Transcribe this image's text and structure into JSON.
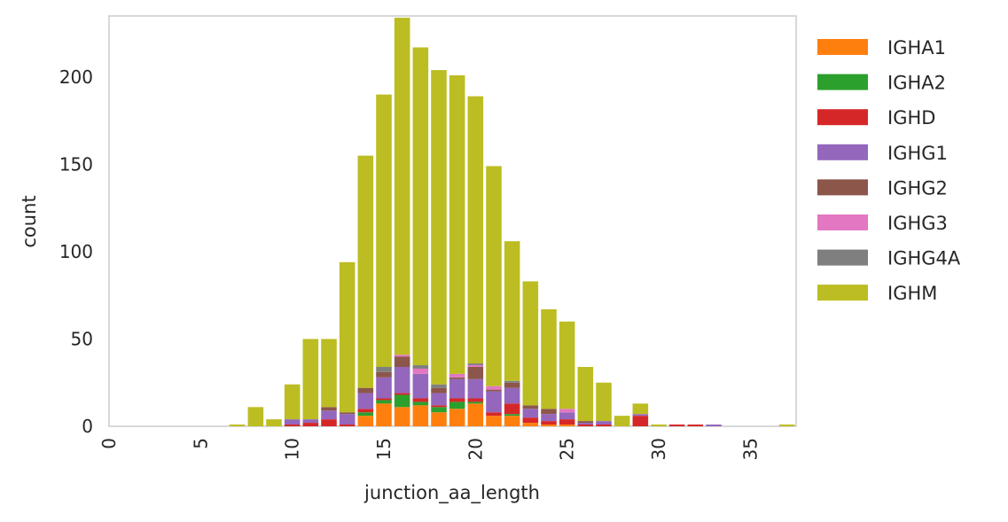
{
  "chart_data": {
    "type": "bar",
    "stacked": true,
    "title": "",
    "xlabel": "junction_aa_length",
    "ylabel": "count",
    "xlim": [
      0,
      37.5
    ],
    "ylim": [
      0,
      235
    ],
    "x_ticks": [
      0,
      5,
      10,
      15,
      20,
      25,
      30,
      35
    ],
    "y_ticks": [
      0,
      50,
      100,
      150,
      200
    ],
    "x_tick_labels": [
      "0",
      "5",
      "10",
      "15",
      "20",
      "25",
      "30",
      "35"
    ],
    "y_tick_labels": [
      "0",
      "50",
      "100",
      "150",
      "200"
    ],
    "grid": false,
    "legend_position": "right, outside plot",
    "x": [
      7,
      8,
      9,
      10,
      11,
      12,
      13,
      14,
      15,
      16,
      17,
      18,
      19,
      20,
      21,
      22,
      23,
      24,
      25,
      26,
      27,
      28,
      29,
      30,
      31,
      32,
      33,
      34,
      35,
      36,
      37
    ],
    "totals": [
      1,
      11,
      4,
      24,
      50,
      50,
      94,
      155,
      190,
      234,
      217,
      204,
      201,
      189,
      149,
      106,
      83,
      67,
      60,
      34,
      25,
      6,
      13,
      1,
      1,
      1,
      1,
      0,
      0,
      0,
      1
    ],
    "series": [
      {
        "name": "IGHA1",
        "color": "#ff7f0e",
        "values": [
          0,
          0,
          0,
          0,
          0,
          0,
          0,
          6,
          13,
          11,
          12,
          8,
          10,
          13,
          6,
          6,
          2,
          1,
          1,
          0,
          0,
          0,
          0,
          0,
          0,
          0,
          0,
          0,
          0,
          0,
          0
        ]
      },
      {
        "name": "IGHA2",
        "color": "#2ca02c",
        "values": [
          0,
          0,
          0,
          0,
          0,
          0,
          0,
          2,
          2,
          7,
          2,
          3,
          4,
          1,
          0,
          1,
          0,
          0,
          0,
          0,
          0,
          0,
          0,
          0,
          0,
          0,
          0,
          0,
          0,
          0,
          0
        ]
      },
      {
        "name": "IGHD",
        "color": "#d62728",
        "values": [
          0,
          0,
          0,
          1,
          2,
          4,
          1,
          2,
          1,
          1,
          2,
          1,
          2,
          2,
          2,
          6,
          3,
          2,
          3,
          1,
          1,
          0,
          6,
          0,
          1,
          1,
          0,
          0,
          0,
          0,
          0
        ]
      },
      {
        "name": "IGHG1",
        "color": "#9467bd",
        "values": [
          0,
          0,
          0,
          3,
          2,
          5,
          6,
          9,
          12,
          15,
          14,
          7,
          11,
          11,
          12,
          9,
          5,
          4,
          4,
          1,
          2,
          0,
          1,
          0,
          0,
          0,
          1,
          0,
          0,
          0,
          0
        ]
      },
      {
        "name": "IGHG2",
        "color": "#8c564b",
        "values": [
          0,
          0,
          0,
          0,
          0,
          2,
          1,
          3,
          3,
          6,
          0,
          3,
          1,
          7,
          1,
          3,
          2,
          3,
          0,
          1,
          0,
          0,
          0,
          0,
          0,
          0,
          0,
          0,
          0,
          0,
          0
        ]
      },
      {
        "name": "IGHG3",
        "color": "#e377c2",
        "values": [
          0,
          0,
          0,
          0,
          0,
          0,
          0,
          0,
          0,
          1,
          3,
          0,
          2,
          1,
          2,
          0,
          0,
          0,
          2,
          0,
          0,
          0,
          0,
          0,
          0,
          0,
          0,
          0,
          0,
          0,
          0
        ]
      },
      {
        "name": "IGHG4A",
        "color": "#7f7f7f",
        "values": [
          0,
          0,
          0,
          0,
          0,
          0,
          0,
          0,
          3,
          0,
          2,
          2,
          0,
          1,
          0,
          1,
          0,
          0,
          0,
          0,
          0,
          0,
          0,
          0,
          0,
          0,
          0,
          0,
          0,
          0,
          0
        ]
      },
      {
        "name": "IGHM",
        "color": "#bcbd22",
        "values": [
          1,
          11,
          4,
          20,
          46,
          39,
          86,
          133,
          156,
          193,
          182,
          180,
          171,
          153,
          126,
          80,
          71,
          57,
          50,
          31,
          22,
          6,
          6,
          1,
          0,
          0,
          0,
          0,
          0,
          0,
          1
        ]
      }
    ]
  }
}
